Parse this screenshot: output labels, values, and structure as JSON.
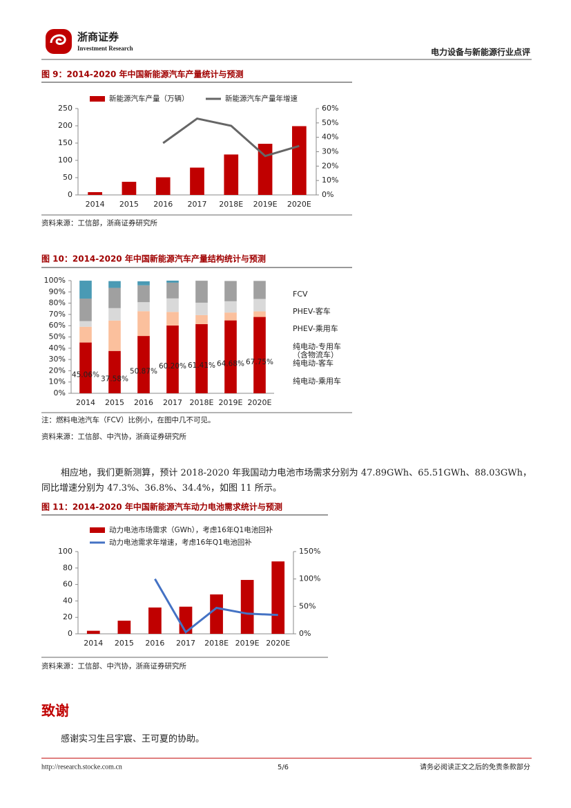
{
  "header": {
    "brand": "浙商证券",
    "brand_en": "Investment Research",
    "report": "电力设备与新能源行业点评"
  },
  "chart_data": [
    {
      "type": "bar_line",
      "title": "图 9：2014-2020 年中国新能源汽车产量统计与预测",
      "categories": [
        "2014",
        "2015",
        "2016",
        "2017",
        "2018E",
        "2019E",
        "2020E"
      ],
      "series": [
        {
          "name": "新能源汽车产量（万辆）",
          "color": "#c00000",
          "values": [
            8,
            38,
            51,
            79,
            117,
            148,
            199
          ]
        },
        {
          "name": "新能源汽车产量年增速",
          "color": "#666666",
          "axis": "y2",
          "values": [
            null,
            null,
            36,
            53,
            48,
            27,
            34
          ]
        }
      ],
      "ylim": [
        0,
        250
      ],
      "yticks": [
        0,
        50,
        100,
        150,
        200,
        250
      ],
      "y2lim": [
        0,
        60
      ],
      "y2ticks": [
        {
          "value": 0,
          "label": "0%"
        },
        {
          "value": 10,
          "label": "10%"
        },
        {
          "value": 20,
          "label": "20%"
        },
        {
          "value": 30,
          "label": "30%"
        },
        {
          "value": 40,
          "label": "40%"
        },
        {
          "value": 50,
          "label": "50%"
        },
        {
          "value": 60,
          "label": "60%"
        }
      ],
      "source": "资料来源：工信部，浙商证券研究所"
    },
    {
      "type": "stacked_bar",
      "title": "图 10：2014-2020 年中国新能源汽车产量结构统计与预测",
      "categories": [
        "2014",
        "2015",
        "2016",
        "2017",
        "2018E",
        "2019E",
        "2020E"
      ],
      "series": [
        {
          "name": "纯电动-乘用车",
          "color": "#c00000",
          "values": [
            45.06,
            37.58,
            50.87,
            60.2,
            61.41,
            64.68,
            67.75
          ],
          "value_labels": [
            "45.06%",
            "37.58%",
            "50.87%",
            "60.20%",
            "61.41%",
            "64.68%",
            "67.75%"
          ]
        },
        {
          "name": "纯电动-客车",
          "color": "#fbc09d",
          "values": [
            14,
            27,
            22,
            12,
            8,
            7,
            5
          ]
        },
        {
          "name": "纯电动-专用车（含物流车）",
          "color": "#d9d9d9",
          "values": [
            5,
            11,
            8,
            12,
            11,
            10,
            11
          ]
        },
        {
          "name": "PHEV-乘用车",
          "color": "#a0a0a0",
          "values": [
            20,
            18,
            15,
            14,
            19.5,
            18,
            16
          ]
        },
        {
          "name": "PHEV-客车",
          "color": "#4a9ab4",
          "values": [
            15.9,
            6,
            3.5,
            1.8,
            0,
            0,
            0
          ]
        },
        {
          "name": "FCV",
          "color": "#b4a7d6",
          "values": [
            0,
            0,
            0,
            0,
            0,
            0,
            0
          ]
        }
      ],
      "ylim": [
        0,
        100
      ],
      "yticks": [
        {
          "value": 0,
          "label": "0%"
        },
        {
          "value": 10,
          "label": "10%"
        },
        {
          "value": 20,
          "label": "20%"
        },
        {
          "value": 30,
          "label": "30%"
        },
        {
          "value": 40,
          "label": "40%"
        },
        {
          "value": 50,
          "label": "50%"
        },
        {
          "value": 60,
          "label": "60%"
        },
        {
          "value": 70,
          "label": "70%"
        },
        {
          "value": 80,
          "label": "80%"
        },
        {
          "value": 90,
          "label": "90%"
        },
        {
          "value": 100,
          "label": "100%"
        }
      ],
      "note": "注：燃料电池汽车（FCV）比例小，在图中几不可见。",
      "source": "资料来源：工信部、中汽协，浙商证券研究所"
    },
    {
      "type": "bar_line",
      "title": "图 11：2014-2020 年中国新能源汽车动力电池需求统计与预测",
      "categories": [
        "2014",
        "2015",
        "2016",
        "2017",
        "2018E",
        "2019E",
        "2020E"
      ],
      "series": [
        {
          "name": "动力电池市场需求（GWh），考虑16年Q1电池回补",
          "color": "#c00000",
          "values": [
            3.7,
            16,
            32,
            33,
            47.89,
            65.51,
            88.03
          ]
        },
        {
          "name": "动力电池需求年增速，考虑16年Q1电池回补",
          "color": "#4472c4",
          "axis": "y2",
          "values": [
            null,
            null,
            100,
            3,
            47.3,
            36.8,
            34.4
          ]
        }
      ],
      "ylim": [
        0,
        100
      ],
      "yticks": [
        0,
        20,
        40,
        60,
        80,
        100
      ],
      "y2lim": [
        0,
        150
      ],
      "y2ticks": [
        {
          "value": 0,
          "label": "0%"
        },
        {
          "value": 50,
          "label": "50%"
        },
        {
          "value": 100,
          "label": "100%"
        },
        {
          "value": 150,
          "label": "150%"
        }
      ],
      "source": "资料来源：工信部、中汽协，浙商证券研究所"
    }
  ],
  "body": {
    "paragraph": "相应地，我们更新测算，预计 2018-2020 年我国动力电池市场需求分别为 47.89GWh、65.51GWh、88.03GWh，同比增速分别为 47.3%、36.8%、34.4%，如图 11 所示。",
    "section_title": "致谢",
    "acknowledgement": "感谢实习生吕宇宸、王可夏的协助。"
  },
  "footer": {
    "url": "http://research.stocke.com.cn",
    "page": "5/6",
    "disclaimer": "请务必阅读正文之后的免责条款部分"
  }
}
